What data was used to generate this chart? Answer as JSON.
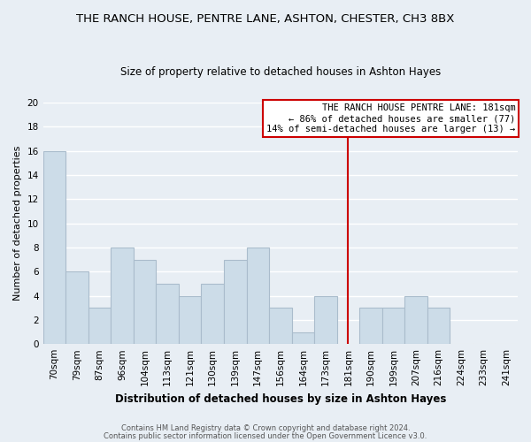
{
  "title": "THE RANCH HOUSE, PENTRE LANE, ASHTON, CHESTER, CH3 8BX",
  "subtitle": "Size of property relative to detached houses in Ashton Hayes",
  "xlabel": "Distribution of detached houses by size in Ashton Hayes",
  "ylabel": "Number of detached properties",
  "footnote1": "Contains HM Land Registry data © Crown copyright and database right 2024.",
  "footnote2": "Contains public sector information licensed under the Open Government Licence v3.0.",
  "bar_labels": [
    "70sqm",
    "79sqm",
    "87sqm",
    "96sqm",
    "104sqm",
    "113sqm",
    "121sqm",
    "130sqm",
    "139sqm",
    "147sqm",
    "156sqm",
    "164sqm",
    "173sqm",
    "181sqm",
    "190sqm",
    "199sqm",
    "207sqm",
    "216sqm",
    "224sqm",
    "233sqm",
    "241sqm"
  ],
  "bar_values": [
    16,
    6,
    3,
    8,
    7,
    5,
    4,
    5,
    7,
    8,
    3,
    1,
    4,
    0,
    3,
    3,
    4,
    3,
    0,
    0,
    0
  ],
  "bar_color": "#ccdce8",
  "bar_edge_color": "#aabccc",
  "vline_x_index": 13,
  "vline_color": "#cc0000",
  "ylim": [
    0,
    20
  ],
  "yticks": [
    0,
    2,
    4,
    6,
    8,
    10,
    12,
    14,
    16,
    18,
    20
  ],
  "legend_title": "THE RANCH HOUSE PENTRE LANE: 181sqm",
  "legend_line1": "← 86% of detached houses are smaller (77)",
  "legend_line2": "14% of semi-detached houses are larger (13) →",
  "bg_color": "#e8eef4",
  "grid_color": "#ffffff",
  "title_fontsize": 9.5,
  "subtitle_fontsize": 8.5,
  "tick_fontsize": 7.5,
  "ylabel_fontsize": 8.0,
  "xlabel_fontsize": 8.5,
  "footnote_fontsize": 6.0
}
